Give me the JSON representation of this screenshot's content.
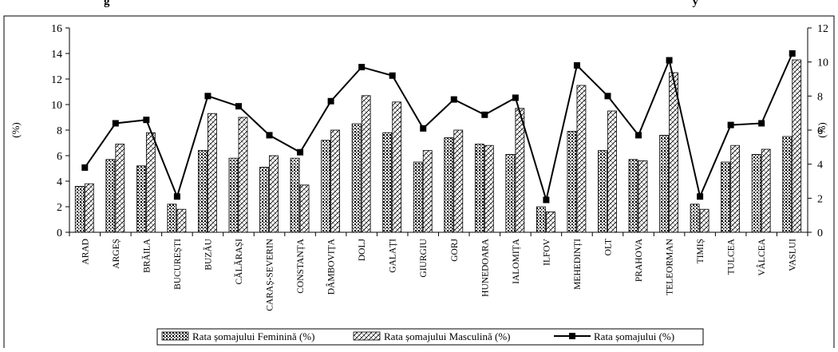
{
  "header": {
    "title_fragment": "g",
    "title_tail": "y"
  },
  "chart_data": {
    "type": "bar",
    "categories": [
      "ARAD",
      "ARGEȘ",
      "BRĂILA",
      "BUCUREȘTI",
      "BUZĂU",
      "CĂLĂRAȘI",
      "CARAȘ-SEVERIN",
      "CONSTANȚA",
      "DÂMBOVIȚA",
      "DOLJ",
      "GALAȚI",
      "GIURGIU",
      "GORJ",
      "HUNEDOARA",
      "IALOMIȚA",
      "ILFOV",
      "MEHEDINȚI",
      "OLT",
      "PRAHOVA",
      "TELEORMAN",
      "TIMIȘ",
      "TULCEA",
      "VÂLCEA",
      "VASLUI"
    ],
    "series": [
      {
        "name": "Rata șomajului Feminină (%)",
        "axis": "left",
        "kind": "bar",
        "pattern": "dots",
        "values": [
          3.6,
          5.7,
          5.2,
          2.2,
          6.4,
          5.8,
          5.1,
          5.8,
          7.2,
          8.5,
          7.8,
          5.5,
          7.4,
          6.9,
          6.1,
          2.0,
          7.9,
          6.4,
          5.7,
          7.6,
          2.2,
          5.5,
          6.1,
          7.5
        ]
      },
      {
        "name": "Rata șomajului Masculină (%)",
        "axis": "left",
        "kind": "bar",
        "pattern": "hatch",
        "values": [
          3.8,
          6.9,
          7.8,
          1.8,
          9.3,
          9.0,
          6.0,
          3.7,
          8.0,
          10.7,
          10.2,
          6.4,
          8.0,
          6.8,
          9.7,
          1.6,
          11.5,
          9.5,
          5.6,
          12.5,
          1.8,
          6.8,
          6.5,
          13.5
        ]
      },
      {
        "name": "Rata șomajului (%)",
        "axis": "right",
        "kind": "line",
        "values": [
          3.8,
          6.4,
          6.6,
          2.1,
          8.0,
          7.4,
          5.7,
          4.7,
          7.7,
          9.7,
          9.2,
          6.1,
          7.8,
          6.9,
          7.9,
          1.9,
          9.8,
          8.0,
          5.7,
          10.1,
          2.1,
          6.3,
          6.4,
          10.5
        ]
      }
    ],
    "ylabel": "(%)",
    "y2label": "(%)",
    "ylim": [
      0,
      16
    ],
    "yticks": [
      "0",
      "2",
      "4",
      "6",
      "8",
      "10",
      "12",
      "14",
      "16"
    ],
    "y2lim": [
      0,
      12
    ],
    "y2ticks": [
      "0",
      "2",
      "4",
      "6",
      "8",
      "10",
      "12"
    ],
    "grid": false,
    "legend_position": "bottom"
  }
}
